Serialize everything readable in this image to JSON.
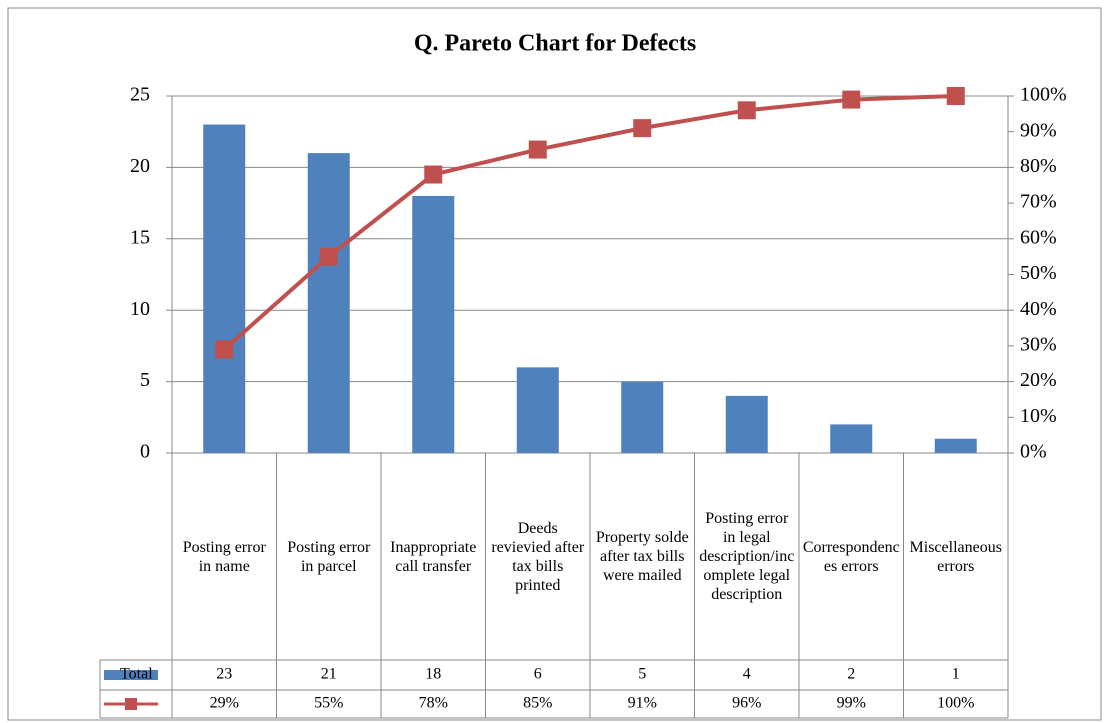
{
  "chart_data": {
    "type": "pareto",
    "title": "Q. Pareto Chart for Defects",
    "categories": [
      "Posting error in name",
      "Posting error in parcel",
      "Inappropriate call transfer",
      "Deeds revievied after tax bills printed",
      "Property solde after tax bills were mailed",
      "Posting error in legal description/incomplete legal description",
      "Correspondences errors",
      "Miscellaneous errors"
    ],
    "series": [
      {
        "name": "Total",
        "color": "#4f81bd",
        "values": [
          23,
          21,
          18,
          6,
          5,
          4,
          2,
          1
        ]
      },
      {
        "color": "#c0504d",
        "axis": "y2",
        "values": [
          29,
          55,
          78,
          85,
          91,
          96,
          99,
          100
        ],
        "value_labels": [
          "29%",
          "55%",
          "78%",
          "85%",
          "91%",
          "96%",
          "99%",
          "100%"
        ]
      }
    ],
    "ylim": [
      0,
      25
    ],
    "yticks": [
      0,
      5,
      10,
      15,
      20,
      25
    ],
    "y2lim": [
      0,
      100
    ],
    "y2ticks": [
      {
        "value": 0,
        "label": "0%"
      },
      {
        "value": 10,
        "label": "10%"
      },
      {
        "value": 20,
        "label": "20%"
      },
      {
        "value": 30,
        "label": "30%"
      },
      {
        "value": 40,
        "label": "40%"
      },
      {
        "value": 50,
        "label": "50%"
      },
      {
        "value": 60,
        "label": "60%"
      },
      {
        "value": 70,
        "label": "70%"
      },
      {
        "value": 80,
        "label": "80%"
      },
      {
        "value": 90,
        "label": "90%"
      },
      {
        "value": 100,
        "label": "100%"
      }
    ],
    "grid": true
  }
}
